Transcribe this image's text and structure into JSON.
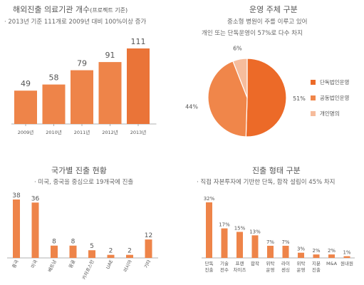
{
  "chart_data": [
    {
      "type": "bar",
      "title": "해외진출 의료기관 개수",
      "title_note": "(프로젝트 기준)",
      "subtitle": "· 2013년 기준 111개로 2009년 대비 100%이상 증가",
      "categories": [
        "2009년",
        "2010년",
        "2011년",
        "2012년",
        "2013년"
      ],
      "values": [
        49,
        58,
        79,
        91,
        111
      ],
      "value_labels": [
        "49",
        "58",
        "79",
        "91",
        "111"
      ],
      "bar_color": "#EE8449",
      "bar_color_last": "#EA7438"
    },
    {
      "type": "pie",
      "title": "운영 주체 구분",
      "subtitle_line1": "중소형 병원이 주를 이루고 있어",
      "subtitle_line2": "개인 또는 단독운영이 57%로 다수 차지",
      "categories": [
        "단독법인운영",
        "공동법인운영",
        "개인명의"
      ],
      "values": [
        51,
        44,
        6
      ],
      "value_labels": [
        "51%",
        "44%",
        "6%"
      ],
      "colors": [
        "#EC6A28",
        "#F0864A",
        "#F6BC9C"
      ],
      "legend_position": "right"
    },
    {
      "type": "bar",
      "title": "국가별 진출 현황",
      "subtitle": "· 미국, 중국을 중심으로 19개국에 진출",
      "categories": [
        "중국",
        "미국",
        "베트남",
        "몽골",
        "카자흐스탄",
        "UAE",
        "러시아",
        "기타"
      ],
      "values": [
        38,
        36,
        8,
        8,
        5,
        2,
        2,
        12
      ],
      "value_labels": [
        "38",
        "36",
        "8",
        "8",
        "5",
        "2",
        "2",
        "12"
      ],
      "bar_color": "#EE8449"
    },
    {
      "type": "bar",
      "title": "진출 형태 구분",
      "subtitle": "· 직접 자본투자에 기반한 단독, 합작 설립이 45% 차지",
      "categories": [
        [
          "단독",
          "진출"
        ],
        [
          "기술",
          "전수"
        ],
        [
          "프랜",
          "차이즈"
        ],
        [
          "합작"
        ],
        [
          "위탁",
          "운영"
        ],
        [
          "라이",
          "센싱"
        ],
        [
          "위탁",
          "운영"
        ],
        [
          "지분",
          "진출"
        ],
        [
          "M&A"
        ],
        [
          "원내원"
        ]
      ],
      "values": [
        32,
        17,
        15,
        13,
        7,
        7,
        3,
        2,
        2,
        1
      ],
      "value_labels": [
        "32%",
        "17%",
        "15%",
        "13%",
        "7%",
        "7%",
        "3%",
        "2%",
        "2%",
        "1%"
      ],
      "bar_color": "#EE8449"
    }
  ]
}
